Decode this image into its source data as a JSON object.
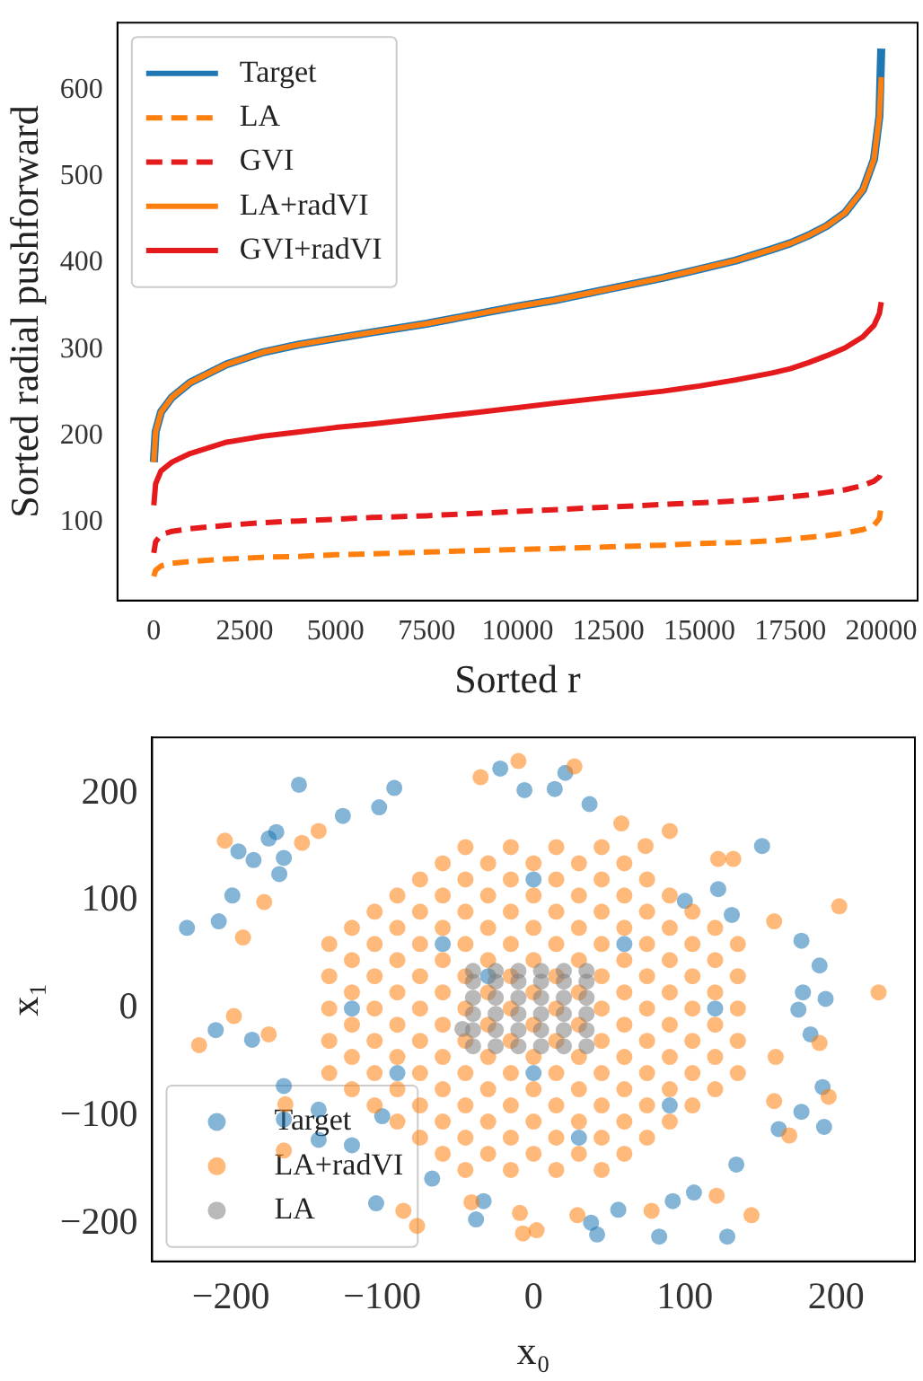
{
  "chart_data": [
    {
      "type": "line",
      "xlabel": "Sorted r",
      "ylabel": "Sorted radial pushforward",
      "legend": "top left",
      "grid": false,
      "xlim": [
        -1000,
        21000
      ],
      "ylim": [
        10,
        678
      ],
      "xticks": [
        0,
        2500,
        5000,
        7500,
        10000,
        12500,
        15000,
        17500,
        20000
      ],
      "yticks": [
        100,
        200,
        300,
        400,
        500,
        600
      ],
      "x": [
        0,
        50,
        200,
        500,
        1000,
        2000,
        3000,
        4000,
        5000,
        6000,
        7500,
        9000,
        10000,
        11000,
        12500,
        14000,
        15000,
        16000,
        17000,
        17500,
        18000,
        18500,
        19000,
        19500,
        19800,
        19950,
        20000
      ],
      "series": [
        {
          "name": "Target",
          "color": "#1f77b4",
          "line_style": "solid",
          "values": [
            170,
            205,
            228,
            245,
            262,
            283,
            297,
            306,
            313,
            320,
            330,
            342,
            350,
            357,
            370,
            383,
            393,
            403,
            416,
            423,
            432,
            443,
            458,
            485,
            520,
            570,
            648
          ]
        },
        {
          "name": "LA",
          "color": "#ff7f0e",
          "line_style": "dashed",
          "values": [
            38,
            45,
            50,
            53,
            55,
            58,
            60,
            61,
            63,
            64,
            66,
            68,
            69,
            70,
            72,
            74,
            76,
            77,
            79,
            81,
            83,
            85,
            88,
            92,
            97,
            105,
            120
          ]
        },
        {
          "name": "GVI",
          "color": "#e41a1c",
          "line_style": "dashed",
          "values": [
            65,
            78,
            86,
            90,
            93,
            97,
            100,
            102,
            104,
            106,
            108,
            111,
            113,
            115,
            118,
            121,
            123,
            125,
            128,
            130,
            132,
            135,
            138,
            143,
            148,
            153,
            160
          ]
        },
        {
          "name": "LA+radVI",
          "color": "#ff7f0e",
          "line_style": "solid",
          "values": [
            170,
            205,
            228,
            245,
            262,
            283,
            297,
            306,
            313,
            320,
            330,
            342,
            350,
            357,
            370,
            383,
            393,
            403,
            416,
            423,
            432,
            443,
            458,
            485,
            520,
            570,
            615
          ]
        },
        {
          "name": "GVI+radVI",
          "color": "#e41a1c",
          "line_style": "solid",
          "values": [
            120,
            145,
            160,
            170,
            180,
            193,
            200,
            205,
            210,
            214,
            221,
            228,
            233,
            238,
            245,
            252,
            258,
            265,
            273,
            278,
            285,
            293,
            302,
            315,
            328,
            342,
            355
          ]
        }
      ]
    },
    {
      "type": "scatter",
      "xlabel": "x₀",
      "ylabel": "x₁",
      "legend": "bottom left",
      "grid": false,
      "marker": "circle",
      "xlim": [
        -252,
        252
      ],
      "ylim": [
        -235,
        252
      ],
      "xticks": [
        {
          "value": -200,
          "label": "−200"
        },
        {
          "value": -100,
          "label": "−100"
        },
        0,
        100,
        200
      ],
      "yticks": [
        {
          "value": -200,
          "label": "−200"
        },
        {
          "value": -100,
          "label": "−100"
        },
        0,
        100,
        200
      ],
      "series": [
        {
          "name": "Target",
          "color": "#1f77b4",
          "x": [
            -229,
            -208,
            -199,
            -195,
            -185,
            -175,
            -170,
            -155,
            -165,
            -168,
            -210,
            -186,
            -165,
            -165,
            -142,
            -126,
            -102,
            -92,
            -22,
            21,
            -6,
            14,
            37,
            151,
            122,
            131,
            177,
            189,
            193,
            178,
            175,
            183,
            191,
            192,
            177,
            162,
            128,
            83,
            42,
            38,
            -38,
            56,
            92,
            106,
            134,
            -67,
            -33,
            -104,
            -120,
            -142,
            -120,
            -60,
            0,
            60,
            120,
            -90,
            30,
            90,
            -30,
            -100,
            100,
            0
          ],
          "values": [
            75,
            81,
            105,
            146,
            138,
            158,
            164,
            208,
            140,
            125,
            -20,
            -29,
            -72,
            -103,
            -94,
            179,
            187,
            205,
            223,
            219,
            203,
            204,
            190,
            151,
            111,
            87,
            63,
            40,
            9,
            15,
            -1,
            -24,
            -73,
            -110,
            -96,
            -112,
            -212,
            -212,
            -210,
            -199,
            -196,
            -187,
            -179,
            -171,
            -145,
            -158,
            -179,
            -181,
            -127,
            -122,
            0,
            60,
            120,
            60,
            0,
            -60,
            -120,
            -90,
            30,
            -100,
            100,
            -60
          ]
        },
        {
          "name": "LA+radVI",
          "color": "#ff7f0e",
          "x": [
            -204,
            -221,
            -198,
            -178,
            -192,
            -175,
            -164,
            -142,
            -153,
            -35,
            -10,
            27,
            90,
            122,
            132,
            202,
            228,
            159,
            159,
            195,
            189,
            169,
            144,
            121,
            78,
            29,
            2,
            -7,
            -9,
            -41,
            -77,
            -86,
            -165,
            58,
            74,
            160,
            -135,
            -135,
            -135,
            -135,
            -135,
            -105,
            -105,
            -105,
            -105,
            -105,
            -105,
            -105,
            -75,
            -75,
            -75,
            -75,
            -75,
            -75,
            -75,
            -75,
            -75,
            -45,
            -45,
            -45,
            -45,
            -45,
            -45,
            -45,
            -45,
            -45,
            -45,
            -45,
            -15,
            -15,
            -15,
            -15,
            -15,
            -15,
            -15,
            -15,
            -15,
            -15,
            -15,
            15,
            15,
            15,
            15,
            15,
            15,
            15,
            15,
            15,
            15,
            15,
            45,
            45,
            45,
            45,
            45,
            45,
            45,
            45,
            45,
            45,
            45,
            75,
            75,
            75,
            75,
            75,
            75,
            75,
            75,
            75,
            105,
            105,
            105,
            105,
            105,
            105,
            105,
            135,
            135,
            135,
            135,
            135,
            -120,
            -120,
            -120,
            -120,
            -120,
            -120,
            -90,
            -90,
            -90,
            -90,
            -90,
            -90,
            -90,
            -90,
            -60,
            -60,
            -60,
            -60,
            -60,
            -60,
            -60,
            -60,
            -60,
            -60,
            -30,
            -30,
            -30,
            -30,
            -30,
            -30,
            -30,
            -30,
            -30,
            -30,
            0,
            0,
            0,
            0,
            0,
            0,
            0,
            0,
            0,
            0,
            30,
            30,
            30,
            30,
            30,
            30,
            30,
            30,
            30,
            30,
            60,
            60,
            60,
            60,
            60,
            60,
            60,
            60,
            60,
            60,
            90,
            90,
            90,
            90,
            90,
            90,
            90,
            90,
            120,
            120,
            120,
            120,
            120,
            120
          ],
          "values": [
            156,
            -34,
            -7,
            99,
            66,
            -24,
            -89,
            165,
            154,
            215,
            230,
            225,
            165,
            139,
            139,
            95,
            15,
            81,
            -86,
            -82,
            -32,
            -118,
            -192,
            -174,
            -188,
            -192,
            -206,
            -209,
            -190,
            -180,
            -202,
            -188,
            -132,
            172,
            151,
            -45,
            -60,
            -30,
            0,
            30,
            60,
            -90,
            -60,
            -30,
            0,
            30,
            60,
            90,
            -120,
            -90,
            -60,
            -30,
            0,
            30,
            60,
            90,
            120,
            -150,
            -120,
            -90,
            -60,
            -30,
            0,
            30,
            60,
            90,
            120,
            150,
            -150,
            -120,
            -90,
            -60,
            -30,
            0,
            30,
            60,
            90,
            120,
            150,
            -150,
            -120,
            -90,
            -60,
            -30,
            0,
            30,
            60,
            90,
            120,
            150,
            -150,
            -120,
            -90,
            -60,
            -30,
            0,
            30,
            60,
            90,
            120,
            150,
            -120,
            -90,
            -60,
            -30,
            0,
            30,
            60,
            90,
            120,
            -90,
            -60,
            -30,
            0,
            30,
            60,
            90,
            -60,
            -30,
            0,
            30,
            60,
            -75,
            -45,
            -15,
            15,
            45,
            75,
            -105,
            -75,
            -45,
            -15,
            15,
            45,
            75,
            105,
            -135,
            -105,
            -75,
            -45,
            -15,
            15,
            45,
            75,
            105,
            135,
            -135,
            -105,
            -75,
            -45,
            -15,
            15,
            45,
            75,
            105,
            135,
            -135,
            -105,
            -75,
            -45,
            -15,
            15,
            45,
            75,
            105,
            135,
            -135,
            -105,
            -75,
            -45,
            -15,
            15,
            45,
            75,
            105,
            135,
            -135,
            -105,
            -75,
            -45,
            -15,
            15,
            45,
            75,
            105,
            135,
            -105,
            -75,
            -45,
            -15,
            15,
            45,
            75,
            105,
            -75,
            -45,
            -15,
            15,
            45,
            75
          ]
        },
        {
          "name": "LA",
          "color": "#7f7f7f",
          "x": [
            -40,
            -40,
            -40,
            -40,
            -40,
            -40,
            -25,
            -25,
            -25,
            -25,
            -25,
            -25,
            -10,
            -10,
            -10,
            -10,
            -10,
            -10,
            5,
            5,
            5,
            5,
            5,
            5,
            20,
            20,
            20,
            20,
            20,
            20,
            35,
            35,
            35,
            35,
            35,
            35,
            -47
          ],
          "values": [
            -35,
            -20,
            -5,
            10,
            25,
            35,
            -35,
            -20,
            -5,
            10,
            25,
            35,
            -35,
            -20,
            -5,
            10,
            25,
            35,
            -35,
            -20,
            -5,
            10,
            25,
            35,
            -35,
            -20,
            -5,
            10,
            25,
            35,
            -35,
            -20,
            -5,
            10,
            25,
            35,
            -19
          ]
        }
      ]
    }
  ]
}
